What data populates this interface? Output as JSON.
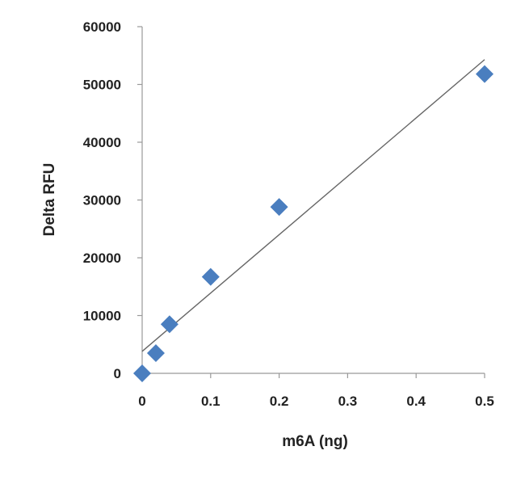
{
  "chart_data": {
    "type": "scatter",
    "title": "",
    "xlabel": "m6A (ng)",
    "ylabel": "Delta RFU",
    "xlim": [
      0,
      0.5
    ],
    "ylim": [
      0,
      60000
    ],
    "xticks": [
      "0",
      "0.1",
      "0.2",
      "0.3",
      "0.4",
      "0.5"
    ],
    "xtick_values": [
      0,
      0.1,
      0.2,
      0.3,
      0.4,
      0.5
    ],
    "yticks": [
      "0",
      "10000",
      "20000",
      "30000",
      "40000",
      "50000",
      "60000"
    ],
    "ytick_values": [
      0,
      10000,
      20000,
      30000,
      40000,
      50000,
      60000
    ],
    "grid": false,
    "series": [
      {
        "name": "data",
        "marker": "diamond",
        "color": "#4a7ebf",
        "x": [
          0,
          0.02,
          0.04,
          0.1,
          0.2,
          0.5
        ],
        "y": [
          0,
          3500,
          8500,
          16700,
          28800,
          51800
        ]
      }
    ],
    "trendline": {
      "type": "linear",
      "color": "#666666",
      "x": [
        0,
        0.5
      ],
      "y": [
        3800,
        54300
      ]
    }
  }
}
